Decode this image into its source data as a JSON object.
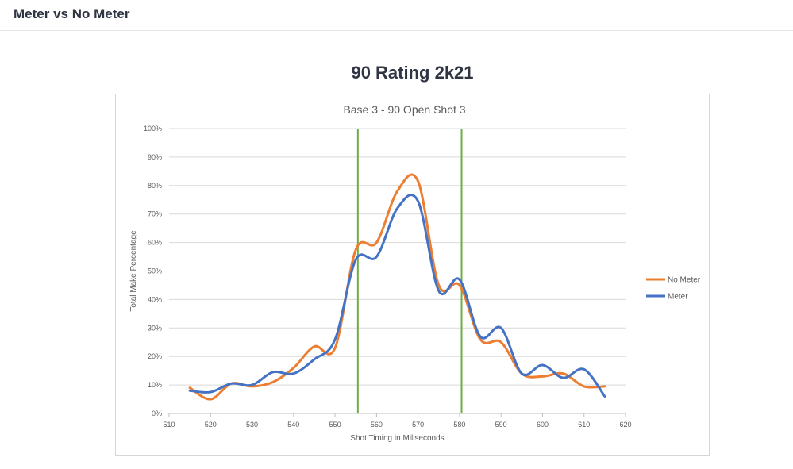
{
  "header": {
    "title": "Meter vs No Meter"
  },
  "page": {
    "heading": "90 Rating 2k21"
  },
  "chart_data": {
    "type": "line",
    "title": "Base 3 - 90 Open Shot 3",
    "xlabel": "Shot Timing in Miliseconds",
    "ylabel": "Total Make Percentage",
    "xlim": [
      510,
      620
    ],
    "ylim": [
      0,
      100
    ],
    "xticks": [
      "510",
      "520",
      "530",
      "540",
      "550",
      "560",
      "570",
      "580",
      "590",
      "600",
      "610",
      "620"
    ],
    "yticks": [
      "0%",
      "10%",
      "20%",
      "30%",
      "40%",
      "50%",
      "60%",
      "70%",
      "80%",
      "90%",
      "100%"
    ],
    "grid": true,
    "legend": "right",
    "vertical_markers": [
      555.5,
      580.5
    ],
    "marker_color": "#70ad47",
    "series": [
      {
        "name": "No Meter",
        "color": "#ed7d31",
        "x": [
          515,
          520,
          525,
          530,
          535,
          540,
          545,
          550,
          555,
          560,
          565,
          570,
          575,
          580,
          585,
          590,
          595,
          600,
          605,
          610,
          615
        ],
        "values": [
          9,
          5,
          10.5,
          9.5,
          11,
          16,
          23.5,
          23,
          57.5,
          60,
          78,
          81.5,
          45,
          45,
          26,
          25,
          14,
          13,
          14,
          9.5,
          9.5
        ]
      },
      {
        "name": "Meter",
        "color": "#4472c4",
        "x": [
          515,
          520,
          525,
          530,
          535,
          540,
          545,
          550,
          555,
          560,
          565,
          570,
          575,
          580,
          585,
          590,
          595,
          600,
          605,
          610,
          615
        ],
        "values": [
          8,
          7.5,
          10.5,
          10,
          14.5,
          14,
          19,
          26,
          54,
          55,
          72,
          74.5,
          43,
          47,
          27,
          30,
          14,
          17,
          12.5,
          15.5,
          6
        ]
      }
    ]
  }
}
